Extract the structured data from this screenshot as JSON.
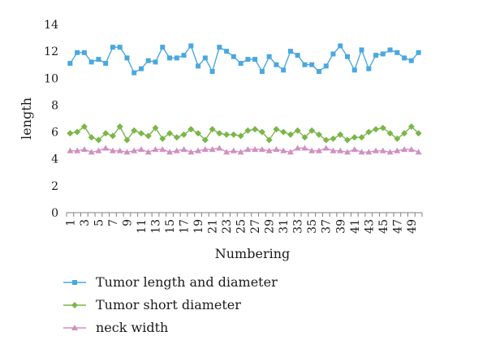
{
  "chart_data": {
    "type": "line",
    "xlabel": "Numbering",
    "ylabel": "length",
    "ylim": [
      0,
      14
    ],
    "yticks": [
      0,
      2,
      4,
      6,
      8,
      10,
      12,
      14
    ],
    "x": [
      1,
      2,
      3,
      4,
      5,
      6,
      7,
      8,
      9,
      10,
      11,
      12,
      13,
      14,
      15,
      16,
      17,
      18,
      19,
      20,
      21,
      22,
      23,
      24,
      25,
      26,
      27,
      28,
      29,
      30,
      31,
      32,
      33,
      34,
      35,
      36,
      37,
      38,
      39,
      40,
      41,
      42,
      43,
      44,
      45,
      46,
      47,
      48,
      49,
      50
    ],
    "xtick_labels": [
      "1",
      "3",
      "5",
      "7",
      "9",
      "11",
      "13",
      "15",
      "17",
      "19",
      "21",
      "23",
      "25",
      "27",
      "29",
      "31",
      "33",
      "35",
      "37",
      "39",
      "41",
      "43",
      "45",
      "47",
      "49"
    ],
    "legend_position": "bottom",
    "grid": false,
    "series": [
      {
        "name": "Tumor length and diameter",
        "color": "#4aa8e0",
        "marker": "square",
        "values": [
          11.1,
          11.9,
          11.9,
          11.2,
          11.4,
          11.1,
          12.3,
          12.3,
          11.5,
          10.4,
          10.7,
          11.3,
          11.2,
          12.3,
          11.5,
          11.5,
          11.7,
          12.4,
          10.9,
          11.5,
          10.5,
          12.3,
          12.0,
          11.6,
          11.1,
          11.4,
          11.4,
          10.5,
          11.6,
          11.0,
          10.6,
          12.0,
          11.7,
          11.0,
          11.0,
          10.5,
          10.9,
          11.8,
          12.4,
          11.6,
          10.6,
          12.1,
          10.7,
          11.7,
          11.8,
          12.1,
          11.9,
          11.5,
          11.3,
          11.9
        ]
      },
      {
        "name": "Tumor short diameter",
        "color": "#7ab648",
        "marker": "diamond",
        "values": [
          5.9,
          6.0,
          6.4,
          5.6,
          5.4,
          5.9,
          5.7,
          6.4,
          5.4,
          6.1,
          5.9,
          5.7,
          6.3,
          5.5,
          5.9,
          5.6,
          5.8,
          6.2,
          5.9,
          5.4,
          6.2,
          5.9,
          5.8,
          5.8,
          5.7,
          6.1,
          6.2,
          6.0,
          5.4,
          6.2,
          6.0,
          5.8,
          6.1,
          5.6,
          6.1,
          5.8,
          5.4,
          5.5,
          5.8,
          5.4,
          5.6,
          5.6,
          6.0,
          6.2,
          6.3,
          5.9,
          5.5,
          5.9,
          6.4,
          5.9
        ]
      },
      {
        "name": "neck width",
        "color": "#d18fc2",
        "marker": "triangle",
        "values": [
          4.6,
          4.6,
          4.7,
          4.5,
          4.6,
          4.8,
          4.6,
          4.6,
          4.5,
          4.6,
          4.7,
          4.5,
          4.7,
          4.7,
          4.5,
          4.6,
          4.7,
          4.5,
          4.6,
          4.7,
          4.7,
          4.8,
          4.5,
          4.6,
          4.5,
          4.7,
          4.7,
          4.7,
          4.6,
          4.7,
          4.6,
          4.5,
          4.8,
          4.8,
          4.6,
          4.6,
          4.8,
          4.6,
          4.6,
          4.5,
          4.7,
          4.5,
          4.5,
          4.6,
          4.6,
          4.5,
          4.6,
          4.7,
          4.7,
          4.5
        ]
      }
    ]
  }
}
